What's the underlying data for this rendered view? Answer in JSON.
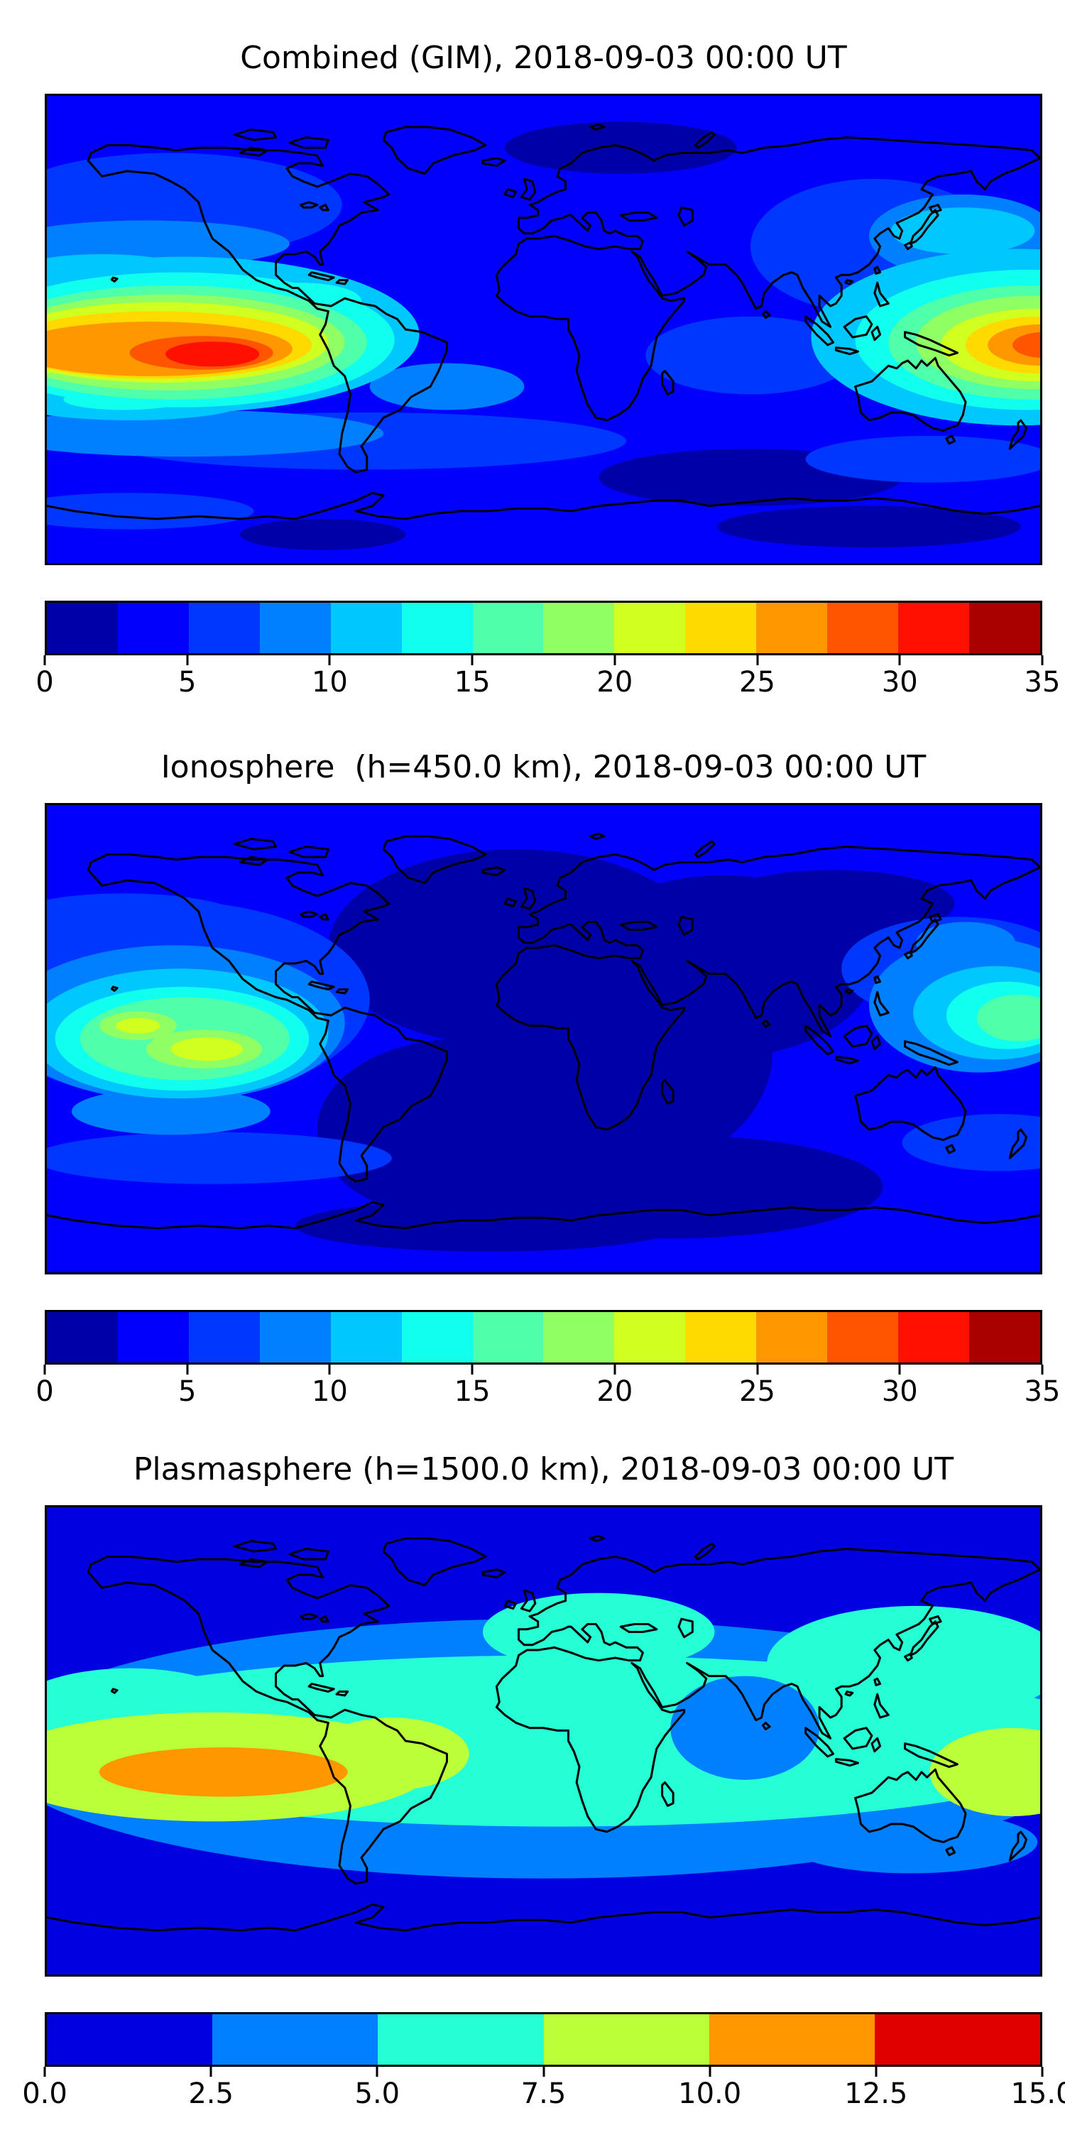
{
  "figure": {
    "background": "#ffffff",
    "panel_count": 3,
    "panel_names": [
      "combined-gim",
      "ionosphere",
      "plasmasphere"
    ]
  },
  "chart_data": [
    {
      "type": "heatmap",
      "subtype": "filled-contour-world-map",
      "title": "Combined (GIM), 2018-09-03 00:00 UT",
      "colormap": "jet",
      "vmin": 0,
      "vmax": 35,
      "level_step": 2.5,
      "levels": [
        0,
        2.5,
        5,
        7.5,
        10,
        12.5,
        15,
        17.5,
        20,
        22.5,
        25,
        27.5,
        30,
        32.5,
        35
      ],
      "palette": [
        "#0000A9",
        "#0000FC",
        "#0037FF",
        "#0080FF",
        "#00C8FF",
        "#10FFEE",
        "#50FFA9",
        "#90FF64",
        "#D0FF20",
        "#FFDA00",
        "#FF9700",
        "#FF5400",
        "#FF1000",
        "#A90000"
      ],
      "tick_values": [
        0,
        5,
        10,
        15,
        20,
        25,
        30,
        35
      ],
      "colorbar_ticks": [
        "0",
        "5",
        "10",
        "15",
        "20",
        "25",
        "30",
        "35"
      ],
      "lon_range": [
        -180,
        180
      ],
      "lat_range": [
        -90,
        90
      ],
      "maxima": [
        {
          "lon": -120,
          "lat": -9,
          "value": 33,
          "note": "equatorial East Pacific west of Peru"
        },
        {
          "lon": 180,
          "lat": -5,
          "value": 28,
          "note": "western Pacific near date line"
        }
      ],
      "minima": [
        {
          "lon": 30,
          "lat": 72,
          "value": 2,
          "note": "Arctic Scandinavia/Russia"
        },
        {
          "lon": 75,
          "lat": -57,
          "value": 2,
          "note": "southern Indian Ocean"
        }
      ],
      "coastlines": true
    },
    {
      "type": "heatmap",
      "subtype": "filled-contour-world-map",
      "title": "Ionosphere  (h=450.0 km), 2018-09-03 00:00 UT",
      "colormap": "jet",
      "vmin": 0,
      "vmax": 35,
      "level_step": 2.5,
      "levels": [
        0,
        2.5,
        5,
        7.5,
        10,
        12.5,
        15,
        17.5,
        20,
        22.5,
        25,
        27.5,
        30,
        32.5,
        35
      ],
      "palette": [
        "#0000A9",
        "#0000FC",
        "#0037FF",
        "#0080FF",
        "#00C8FF",
        "#10FFEE",
        "#50FFA9",
        "#90FF64",
        "#D0FF20",
        "#FFDA00",
        "#FF9700",
        "#FF5400",
        "#FF1000",
        "#A90000"
      ],
      "tick_values": [
        0,
        5,
        10,
        15,
        20,
        25,
        30,
        35
      ],
      "colorbar_ticks": [
        "0",
        "5",
        "10",
        "15",
        "20",
        "25",
        "30",
        "35"
      ],
      "lon_range": [
        -180,
        180
      ],
      "lat_range": [
        -90,
        90
      ],
      "maxima": [
        {
          "lon": -147,
          "lat": 5,
          "value": 21,
          "note": "central Pacific north core"
        },
        {
          "lon": -122,
          "lat": -4,
          "value": 21,
          "note": "east Pacific south core"
        },
        {
          "lon": 176,
          "lat": -14,
          "value": 17,
          "note": "southwest Pacific east of Papua"
        }
      ],
      "minima": [
        {
          "lon": 20,
          "lat": 10,
          "value": 2,
          "note": "broad minimum over Africa/Europe/Atlantic"
        }
      ],
      "coastlines": true
    },
    {
      "type": "heatmap",
      "subtype": "filled-contour-world-map",
      "title": "Plasmasphere (h=1500.0 km), 2018-09-03 00:00 UT",
      "colormap": "jet",
      "vmin": 0,
      "vmax": 15,
      "level_step": 2.5,
      "levels": [
        0,
        2.5,
        5,
        7.5,
        10,
        12.5,
        15
      ],
      "palette": [
        "#0000E0",
        "#0080FF",
        "#26FFD6",
        "#BAFF37",
        "#FF9700",
        "#E00000"
      ],
      "tick_values": [
        0,
        2.5,
        5,
        7.5,
        10,
        12.5,
        15
      ],
      "colorbar_ticks": [
        "0.0",
        "2.5",
        "5.0",
        "7.5",
        "10.0",
        "12.5",
        "15.0"
      ],
      "lon_range": [
        -180,
        180
      ],
      "lat_range": [
        -90,
        90
      ],
      "maxima": [
        {
          "lon": -115,
          "lat": -11,
          "value": 12,
          "note": "orange band Pacific through Peru"
        },
        {
          "lon": 168,
          "lat": -12,
          "value": 9,
          "note": "yellow-green cell SW Pacific"
        }
      ],
      "minima": [
        {
          "lon": 0,
          "lat": 75,
          "value": 1,
          "note": "polar caps"
        },
        {
          "lon": 0,
          "lat": -70,
          "value": 1,
          "note": "polar caps"
        }
      ],
      "coastlines": true
    }
  ]
}
